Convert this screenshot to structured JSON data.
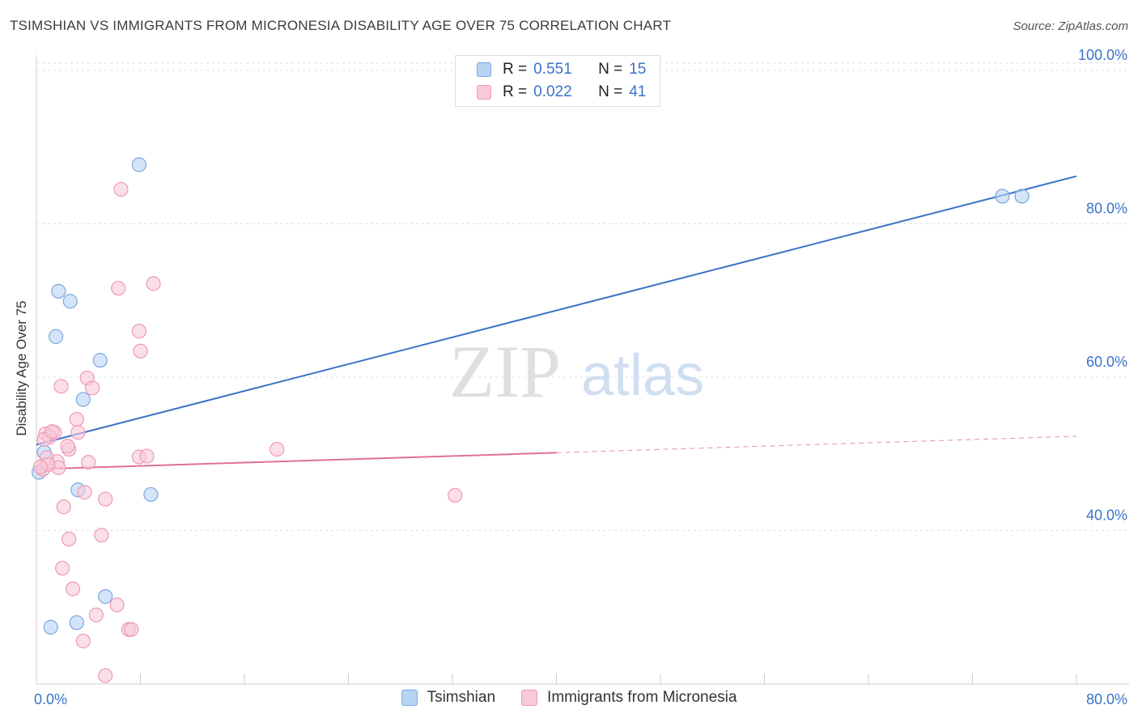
{
  "chart_data": {
    "type": "scatter",
    "title": "TSIMSHIAN VS IMMIGRANTS FROM MICRONESIA DISABILITY AGE OVER 75 CORRELATION CHART",
    "source": "Source: ZipAtlas.com",
    "xlabel": "",
    "ylabel": "Disability Age Over 75",
    "xlim": [
      0,
      80
    ],
    "ylim": [
      20,
      102
    ],
    "x_tick_labels": [
      {
        "value": 0,
        "label": "0.0%"
      },
      {
        "value": 80,
        "label": "80.0%"
      }
    ],
    "y_tick_labels": [
      {
        "value": 40,
        "label": "40.0%"
      },
      {
        "value": 60,
        "label": "60.0%"
      },
      {
        "value": 80,
        "label": "80.0%"
      },
      {
        "value": 100,
        "label": "100.0%"
      }
    ],
    "watermark": {
      "zip": "ZIP",
      "atlas": "atlas"
    },
    "series": [
      {
        "name": "Tsimshian",
        "color": "#7ba7e0",
        "fill": "#b9d3f5",
        "line_color": "#3a73c8",
        "r_label": "R =",
        "r": "0.551",
        "n_label": "N =",
        "n": "15",
        "points": [
          [
            7.9,
            87.7
          ],
          [
            1.7,
            71.2
          ],
          [
            2.6,
            69.9
          ],
          [
            1.5,
            65.3
          ],
          [
            4.9,
            62.2
          ],
          [
            3.6,
            57.1
          ],
          [
            0.6,
            50.2
          ],
          [
            0.2,
            47.6
          ],
          [
            3.2,
            45.3
          ],
          [
            8.8,
            44.7
          ],
          [
            5.3,
            31.4
          ],
          [
            1.1,
            27.4
          ],
          [
            3.1,
            28.0
          ],
          [
            74.3,
            83.6
          ],
          [
            75.8,
            83.6
          ]
        ],
        "trend": {
          "x0": 0,
          "y0": 51.2,
          "x1": 80,
          "y1": 86.2,
          "solid_to": 80
        }
      },
      {
        "name": "Immigrants from Micronesia",
        "color": "#ee9ab5",
        "fill": "#f8c9d8",
        "line_color": "#e0709a",
        "r_label": "R =",
        "r": "0.022",
        "n_label": "N =",
        "n": "41",
        "points": [
          [
            6.5,
            84.5
          ],
          [
            9.0,
            72.2
          ],
          [
            6.3,
            71.6
          ],
          [
            7.9,
            66.0
          ],
          [
            8.0,
            63.4
          ],
          [
            1.9,
            58.8
          ],
          [
            3.9,
            59.9
          ],
          [
            4.3,
            58.6
          ],
          [
            3.1,
            54.5
          ],
          [
            3.2,
            52.8
          ],
          [
            1.4,
            52.8
          ],
          [
            0.7,
            52.6
          ],
          [
            1.0,
            52.2
          ],
          [
            0.8,
            49.5
          ],
          [
            1.6,
            49.0
          ],
          [
            2.5,
            50.6
          ],
          [
            2.4,
            51.0
          ],
          [
            1.7,
            48.2
          ],
          [
            0.5,
            48.0
          ],
          [
            0.9,
            48.6
          ],
          [
            4.0,
            48.9
          ],
          [
            7.9,
            49.6
          ],
          [
            8.5,
            49.7
          ],
          [
            18.5,
            50.6
          ],
          [
            3.7,
            45.0
          ],
          [
            5.3,
            44.1
          ],
          [
            2.1,
            43.1
          ],
          [
            32.2,
            44.6
          ],
          [
            5.0,
            39.4
          ],
          [
            2.5,
            38.9
          ],
          [
            2.0,
            35.1
          ],
          [
            2.8,
            32.4
          ],
          [
            6.2,
            30.3
          ],
          [
            4.6,
            29.0
          ],
          [
            7.1,
            27.1
          ],
          [
            7.3,
            27.1
          ],
          [
            3.6,
            25.6
          ],
          [
            5.3,
            21.1
          ],
          [
            0.3,
            48.3
          ],
          [
            0.6,
            51.9
          ],
          [
            1.2,
            52.9
          ]
        ],
        "trend": {
          "x0": 0,
          "y0": 48.0,
          "x1": 80,
          "y1": 52.3,
          "solid_to": 40
        }
      }
    ]
  }
}
